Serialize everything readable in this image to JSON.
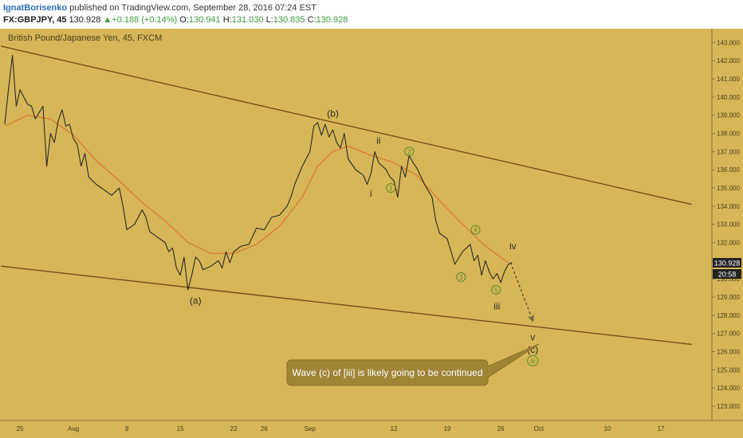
{
  "header": {
    "author": "IgnatBorisenko",
    "published": "published on TradingView.com, September 28, 2016 07:24 EST",
    "symbol": "FX:GBPJPY, 45",
    "last": "130.928",
    "change": "+0.188 (+0.14%)",
    "o_label": "O:",
    "o_value": "130.941",
    "h_label": "H:",
    "h_value": "131.030",
    "l_label": "L:",
    "l_value": "130.835",
    "c_label": "C:",
    "c_value": "130.928"
  },
  "chart_title": "British Pound/Japanese Yen, 45, FXCM",
  "price_badge": "130.928",
  "countdown_badge": "20:58",
  "annotation": "Wave (c) of [iii] is likely going to be continued",
  "colors": {
    "background": "#d6b656",
    "price": "#2b2b2b",
    "ma": "#e06a2e",
    "trendline": "#7a4a1a",
    "circled": "#5a8a2a",
    "callout": "#a08436"
  },
  "chart_data": {
    "type": "line",
    "title": "British Pound/Japanese Yen, 45, FXCM",
    "ylim": [
      122.5,
      143.5
    ],
    "y_ticks": [
      123,
      124,
      125,
      126,
      127,
      128,
      129,
      130,
      131,
      132,
      133,
      134,
      135,
      136,
      137,
      138,
      139,
      140,
      141,
      142,
      143
    ],
    "y_tick_labels": [
      "123.000",
      "124.000",
      "125.000",
      "126.000",
      "127.000",
      "128.000",
      "129.000",
      "130.000",
      "131.000",
      "132.000",
      "133.000",
      "134.000",
      "135.000",
      "136.000",
      "137.000",
      "138.000",
      "139.000",
      "140.000",
      "141.000",
      "142.000",
      "143.000"
    ],
    "x_ticks": [
      {
        "label": "25",
        "day": 2
      },
      {
        "label": "Aug",
        "day": 9
      },
      {
        "label": "8",
        "day": 16
      },
      {
        "label": "15",
        "day": 23
      },
      {
        "label": "22",
        "day": 30
      },
      {
        "label": "26",
        "day": 34
      },
      {
        "label": "Sep",
        "day": 40
      },
      {
        "label": "12",
        "day": 51
      },
      {
        "label": "19",
        "day": 58
      },
      {
        "label": "26",
        "day": 65
      },
      {
        "label": "Oct",
        "day": 70
      },
      {
        "label": "10",
        "day": 79
      },
      {
        "label": "17",
        "day": 86
      }
    ],
    "price_series": [
      [
        0,
        138.5
      ],
      [
        0.5,
        140.5
      ],
      [
        1,
        142.3
      ],
      [
        1.5,
        139.5
      ],
      [
        2,
        140.4
      ],
      [
        3,
        139.6
      ],
      [
        3.5,
        139.5
      ],
      [
        4,
        138.8
      ],
      [
        5,
        139.5
      ],
      [
        5.5,
        136.2
      ],
      [
        6,
        138.0
      ],
      [
        6.5,
        137.5
      ],
      [
        7,
        138.7
      ],
      [
        7.5,
        139.3
      ],
      [
        8,
        138.4
      ],
      [
        8.5,
        138.5
      ],
      [
        9,
        137.7
      ],
      [
        9.5,
        137.4
      ],
      [
        10,
        136.2
      ],
      [
        10.5,
        136.9
      ],
      [
        11,
        135.6
      ],
      [
        12,
        135.2
      ],
      [
        13,
        134.9
      ],
      [
        14,
        134.6
      ],
      [
        15,
        135.0
      ],
      [
        15.5,
        134.0
      ],
      [
        16,
        132.7
      ],
      [
        17,
        133.0
      ],
      [
        18,
        133.8
      ],
      [
        18.5,
        133.4
      ],
      [
        19,
        132.6
      ],
      [
        20,
        132.3
      ],
      [
        21,
        132.0
      ],
      [
        21.5,
        131.5
      ],
      [
        22,
        131.7
      ],
      [
        22.5,
        130.6
      ],
      [
        23,
        130.2
      ],
      [
        23.5,
        131.2
      ],
      [
        24,
        129.4
      ],
      [
        24.5,
        130.2
      ],
      [
        25,
        131.2
      ],
      [
        25.5,
        131.0
      ],
      [
        26,
        130.5
      ],
      [
        27,
        130.7
      ],
      [
        28,
        131.0
      ],
      [
        28.5,
        130.6
      ],
      [
        29,
        131.5
      ],
      [
        29.5,
        130.9
      ],
      [
        30,
        131.5
      ],
      [
        31,
        131.8
      ],
      [
        32,
        131.9
      ],
      [
        33,
        132.8
      ],
      [
        34,
        132.7
      ],
      [
        35,
        133.4
      ],
      [
        36,
        133.5
      ],
      [
        37,
        134.0
      ],
      [
        37.5,
        134.5
      ],
      [
        38,
        135.2
      ],
      [
        39,
        136.2
      ],
      [
        40,
        137.0
      ],
      [
        40.5,
        138.4
      ],
      [
        41,
        138.6
      ],
      [
        41.5,
        137.9
      ],
      [
        42,
        138.5
      ],
      [
        42.5,
        137.8
      ],
      [
        43,
        138.2
      ],
      [
        43.5,
        137.5
      ],
      [
        44,
        137.2
      ],
      [
        44.5,
        138.0
      ],
      [
        45,
        136.6
      ],
      [
        46,
        136.0
      ],
      [
        47,
        135.7
      ],
      [
        47.5,
        135.2
      ],
      [
        48,
        135.8
      ],
      [
        48.5,
        137.0
      ],
      [
        49,
        136.4
      ],
      [
        50,
        136.0
      ],
      [
        50.5,
        135.6
      ],
      [
        51,
        135.4
      ],
      [
        51.5,
        134.5
      ],
      [
        52,
        136.2
      ],
      [
        52.5,
        135.6
      ],
      [
        53,
        136.8
      ],
      [
        53.5,
        136.4
      ],
      [
        54,
        136.1
      ],
      [
        55,
        135.2
      ],
      [
        56,
        134.5
      ],
      [
        56.5,
        133.2
      ],
      [
        57,
        132.5
      ],
      [
        58,
        132.2
      ],
      [
        58.5,
        131.5
      ],
      [
        59,
        130.8
      ],
      [
        60,
        131.5
      ],
      [
        61,
        131.9
      ],
      [
        61.5,
        131.0
      ],
      [
        62,
        131.3
      ],
      [
        62.5,
        130.2
      ],
      [
        63,
        131.0
      ],
      [
        63.5,
        130.4
      ],
      [
        64,
        130.0
      ],
      [
        64.5,
        130.3
      ],
      [
        65,
        129.8
      ],
      [
        65.5,
        130.4
      ],
      [
        66,
        130.8
      ],
      [
        66.5,
        130.9
      ]
    ],
    "ma_series": [
      [
        0,
        138.4
      ],
      [
        3,
        139.0
      ],
      [
        6,
        138.8
      ],
      [
        9,
        137.9
      ],
      [
        12,
        136.5
      ],
      [
        15,
        135.4
      ],
      [
        18,
        134.2
      ],
      [
        21,
        133.2
      ],
      [
        24,
        132.0
      ],
      [
        27,
        131.4
      ],
      [
        30,
        131.4
      ],
      [
        33,
        131.9
      ],
      [
        36,
        132.9
      ],
      [
        39,
        134.5
      ],
      [
        41,
        136.2
      ],
      [
        43,
        137.0
      ],
      [
        45,
        137.3
      ],
      [
        48,
        136.8
      ],
      [
        51,
        136.4
      ],
      [
        54,
        135.7
      ],
      [
        57,
        134.3
      ],
      [
        60,
        133.0
      ],
      [
        63,
        131.8
      ],
      [
        66,
        130.9
      ]
    ],
    "trendlines": [
      {
        "x1": -0.5,
        "y1": 142.8,
        "x2": 90,
        "y2": 134.1
      },
      {
        "x1": -0.5,
        "y1": 130.7,
        "x2": 90,
        "y2": 126.4
      }
    ],
    "projection": {
      "x1": 66.3,
      "y1": 130.9,
      "x2": 69.2,
      "y2": 127.7
    },
    "wave_labels": [
      {
        "text": "(b)",
        "x": 43,
        "y": 139.1,
        "style": "dark"
      },
      {
        "text": "(a)",
        "x": 25,
        "y": 128.8,
        "style": "dark"
      },
      {
        "text": "ii",
        "x": 49,
        "y": 137.6,
        "style": "dark"
      },
      {
        "text": "i",
        "x": 48,
        "y": 134.7,
        "style": "dark"
      },
      {
        "text": "iii",
        "x": 64.5,
        "y": 128.5,
        "style": "dark"
      },
      {
        "text": "iv",
        "x": 66.6,
        "y": 131.8,
        "style": "dark"
      },
      {
        "text": "v",
        "x": 69.2,
        "y": 126.8,
        "style": "dark"
      },
      {
        "text": "(c)",
        "x": 69.2,
        "y": 126.1,
        "style": "dark"
      },
      {
        "text": "1",
        "x": 50.6,
        "y": 135.0,
        "style": "circle"
      },
      {
        "text": "2",
        "x": 53,
        "y": 137.0,
        "style": "circle"
      },
      {
        "text": "3",
        "x": 59.8,
        "y": 130.1,
        "style": "circle"
      },
      {
        "text": "4",
        "x": 61.7,
        "y": 132.7,
        "style": "circle"
      },
      {
        "text": "5",
        "x": 64.4,
        "y": 129.4,
        "style": "circle"
      },
      {
        "text": "iii",
        "x": 69.2,
        "y": 125.5,
        "style": "circle"
      }
    ]
  }
}
